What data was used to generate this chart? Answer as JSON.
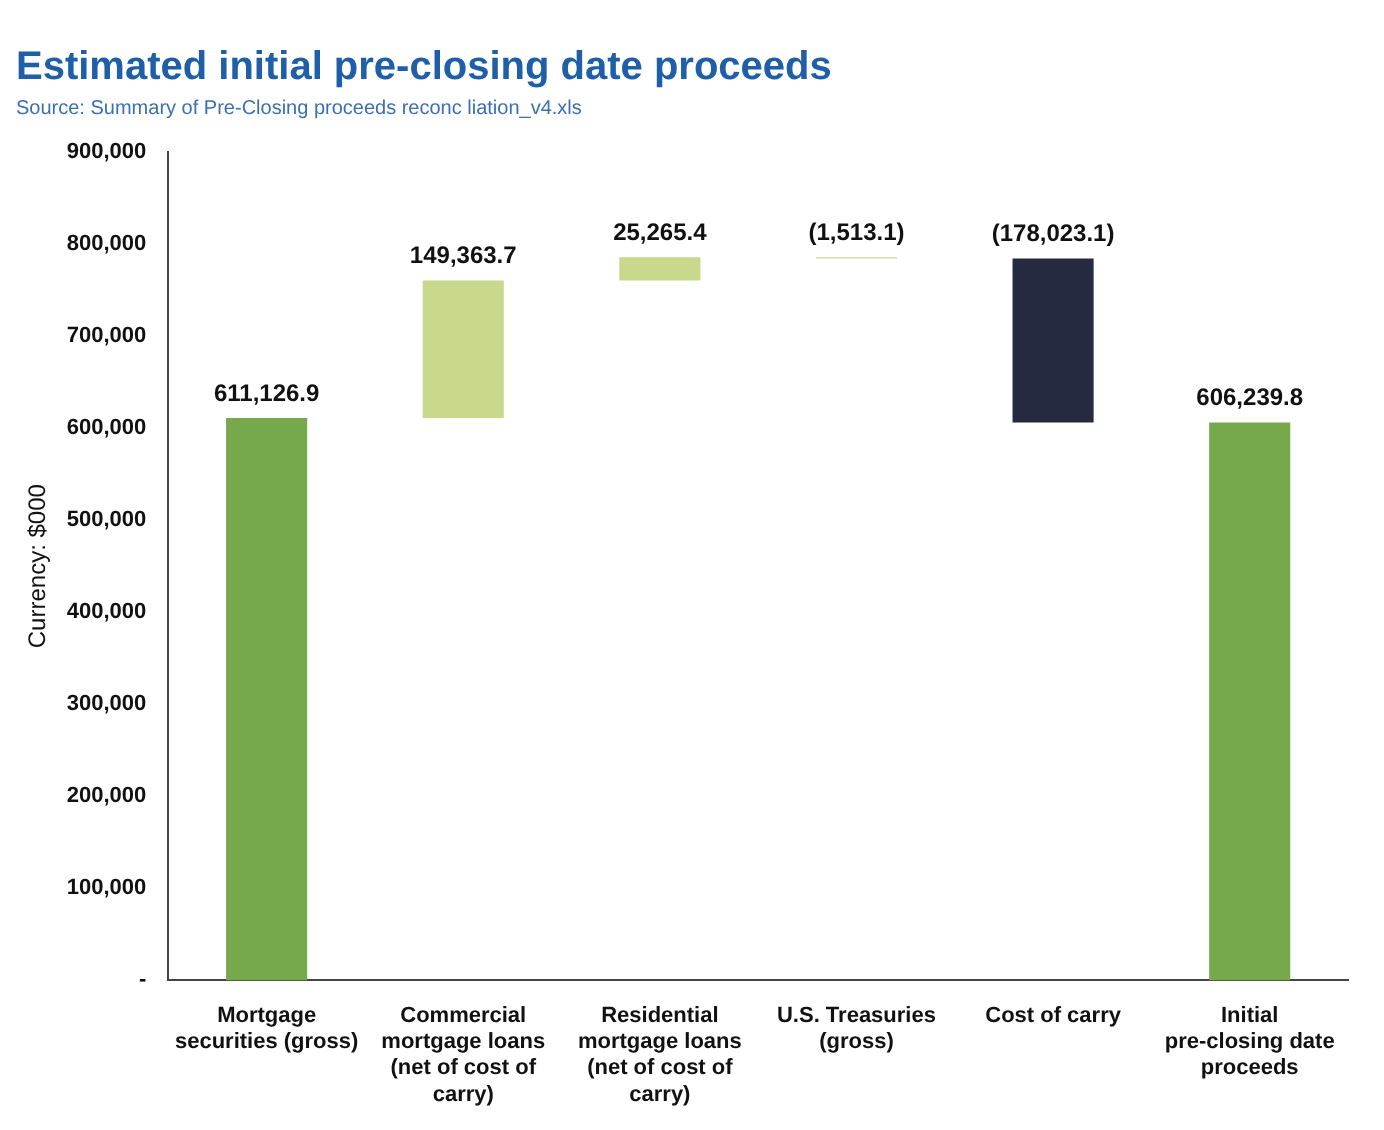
{
  "chart_data": {
    "type": "bar",
    "title": "Estimated initial pre-closing date proceeds",
    "ylabel": "Currency: $000",
    "annotations": [
      "Source: Summary of Pre-Closing proceeds reconc liation_v4.xls"
    ],
    "categories": [
      "Mortgage securities (gross)",
      "Commercial mortgage loans (net of cost of carry)",
      "Residential mortgage loans (net of cost of carry)",
      "U.S. Treasuries (gross)",
      "Cost of carry",
      "Initial pre-closing date proceeds"
    ],
    "values": [
      611126.9,
      149363.7,
      25265.4,
      -1513.1,
      -178023.1,
      606239.8
    ],
    "base": [
      0,
      611126.9,
      760490.6,
      785756.0,
      784242.9,
      0
    ],
    "colors": [
      "#76a84c",
      "#c9d98c",
      "#c9d98c",
      "#c9d98c",
      "#262a40",
      "#76a84c"
    ],
    "value_labels": [
      "611,126.9",
      "149,363.7",
      "25,265.4",
      "(1,513.1)",
      "(178,023.1)",
      "606,239.8"
    ],
    "ylim": [
      0,
      900000
    ],
    "yticks": [
      {
        "value": 0,
        "label": "-"
      },
      {
        "value": 100000,
        "label": "100,000"
      },
      {
        "value": 200000,
        "label": "200,000"
      },
      {
        "value": 300000,
        "label": "300,000"
      },
      {
        "value": 400000,
        "label": "400,000"
      },
      {
        "value": 500000,
        "label": "500,000"
      },
      {
        "value": 600000,
        "label": "600,000"
      },
      {
        "value": 700000,
        "label": "700,000"
      },
      {
        "value": 800000,
        "label": "800,000"
      },
      {
        "value": 900000,
        "label": "900,000"
      }
    ],
    "grid": false,
    "legend": false
  }
}
